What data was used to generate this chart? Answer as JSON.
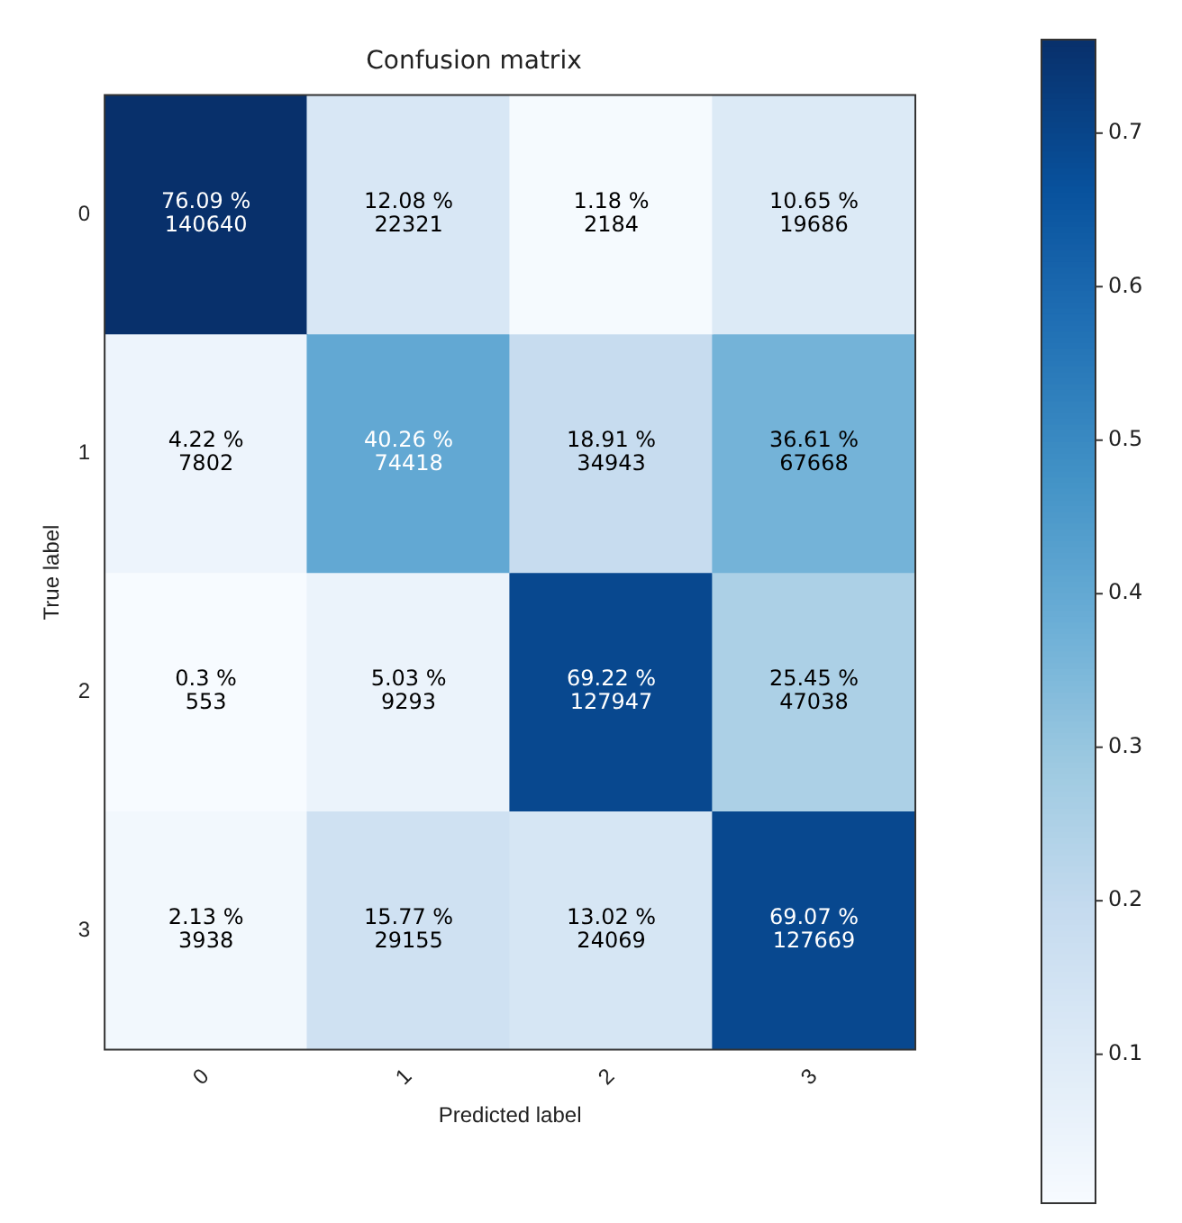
{
  "chart_data": {
    "type": "heatmap",
    "title": "Confusion matrix",
    "xlabel": "Predicted label",
    "ylabel": "True label",
    "categories": [
      "0",
      "1",
      "2",
      "3"
    ],
    "y_categories": [
      "0",
      "1",
      "2",
      "3"
    ],
    "cells": [
      [
        0.7609,
        0.1208,
        0.0118,
        0.1065
      ],
      [
        0.0422,
        0.4026,
        0.1891,
        0.3661
      ],
      [
        0.003,
        0.0503,
        0.6922,
        0.2545
      ],
      [
        0.0213,
        0.1577,
        0.1302,
        0.6907
      ]
    ],
    "cell_labels": [
      [
        "76.09 %\n140640",
        "12.08 %\n22321",
        "1.18 %\n2184",
        "10.65 %\n19686"
      ],
      [
        "4.22 %\n7802",
        "40.26 %\n74418",
        "18.91 %\n34943",
        "36.61 %\n67668"
      ],
      [
        "0.3 %\n553",
        "5.03 %\n9293",
        "69.22 %\n127947",
        "25.45 %\n47038"
      ],
      [
        "2.13 %\n3938",
        "15.77 %\n29155",
        "13.02 %\n24069",
        "69.07 %\n127669"
      ]
    ],
    "clim": [
      0.003,
      0.7609
    ],
    "cticks": [
      0.1,
      0.2,
      0.3,
      0.4,
      0.5,
      0.6,
      0.7
    ]
  }
}
